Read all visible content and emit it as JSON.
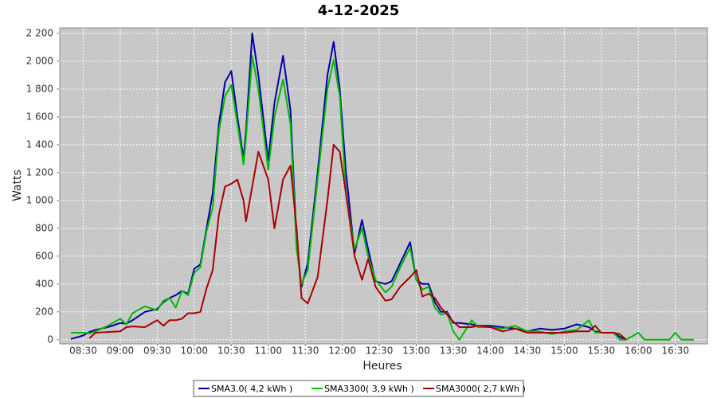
{
  "chart_data": {
    "type": "line",
    "title": "4-12-2025",
    "x_label": "Heures",
    "y_label": "Watts",
    "x": [
      "08:20",
      "08:30",
      "08:35",
      "08:40",
      "08:50",
      "09:00",
      "09:05",
      "09:10",
      "09:20",
      "09:30",
      "09:35",
      "09:40",
      "09:45",
      "09:50",
      "09:55",
      "10:00",
      "10:05",
      "10:10",
      "10:15",
      "10:20",
      "10:25",
      "10:30",
      "10:35",
      "10:40",
      "10:42",
      "10:47",
      "10:52",
      "11:00",
      "11:05",
      "11:12",
      "11:18",
      "11:23",
      "11:27",
      "11:32",
      "11:40",
      "11:48",
      "11:53",
      "11:58",
      "12:03",
      "12:10",
      "12:16",
      "12:21",
      "12:27",
      "12:35",
      "12:40",
      "12:47",
      "12:55",
      "13:00",
      "13:05",
      "13:10",
      "13:15",
      "13:20",
      "13:25",
      "13:30",
      "13:35",
      "13:45",
      "13:50",
      "14:00",
      "14:10",
      "14:20",
      "14:30",
      "14:40",
      "14:50",
      "15:00",
      "15:10",
      "15:20",
      "15:25",
      "15:30",
      "15:40",
      "15:45",
      "15:50",
      "16:00",
      "16:05",
      "16:25",
      "16:30",
      "16:35",
      "16:45"
    ],
    "series": [
      {
        "name": "SMA3.0( 4,2 kWh )",
        "color": "#0000aa",
        "values": [
          5,
          30,
          55,
          70,
          90,
          120,
          115,
          140,
          200,
          220,
          270,
          300,
          320,
          350,
          330,
          510,
          540,
          800,
          1050,
          1550,
          1850,
          1930,
          1600,
          1300,
          1500,
          2200,
          1900,
          1290,
          1700,
          2040,
          1650,
          700,
          380,
          550,
          1200,
          1900,
          2140,
          1800,
          1200,
          620,
          860,
          650,
          420,
          400,
          420,
          550,
          700,
          430,
          400,
          400,
          270,
          200,
          200,
          120,
          120,
          110,
          100,
          100,
          90,
          80,
          60,
          80,
          70,
          80,
          110,
          90,
          60,
          50,
          50,
          20,
          0,
          null,
          null,
          null,
          null,
          null,
          null
        ]
      },
      {
        "name": "SMA3300( 3,9 kWh )",
        "color": "#00bb00",
        "values": [
          50,
          50,
          45,
          60,
          100,
          150,
          110,
          190,
          240,
          210,
          280,
          300,
          230,
          350,
          320,
          480,
          520,
          780,
          950,
          1500,
          1750,
          1830,
          1550,
          1260,
          1450,
          2040,
          1800,
          1220,
          1600,
          1870,
          1550,
          650,
          400,
          500,
          1150,
          1800,
          2010,
          1750,
          1050,
          650,
          800,
          600,
          430,
          340,
          380,
          520,
          660,
          430,
          360,
          380,
          230,
          180,
          190,
          60,
          0,
          140,
          90,
          90,
          80,
          100,
          60,
          60,
          40,
          60,
          70,
          140,
          50,
          50,
          50,
          0,
          0,
          50,
          0,
          0,
          50,
          0,
          0
        ]
      },
      {
        "name": "SMA3000( 2,7 kWh )",
        "color": "#aa0000",
        "values": [
          null,
          null,
          10,
          50,
          55,
          60,
          90,
          95,
          90,
          140,
          100,
          140,
          140,
          150,
          190,
          190,
          200,
          370,
          500,
          900,
          1100,
          1120,
          1150,
          1000,
          850,
          1100,
          1350,
          1150,
          800,
          1150,
          1250,
          800,
          300,
          260,
          450,
          1000,
          1400,
          1350,
          1050,
          600,
          430,
          580,
          380,
          280,
          290,
          380,
          450,
          500,
          310,
          330,
          300,
          230,
          180,
          130,
          90,
          90,
          100,
          90,
          60,
          80,
          50,
          50,
          50,
          50,
          60,
          60,
          100,
          50,
          50,
          40,
          0,
          null,
          null,
          null,
          null,
          null,
          null
        ]
      }
    ],
    "xlim": [
      "08:11",
      "16:56"
    ],
    "xticks": [
      "08:30",
      "09:00",
      "09:30",
      "10:00",
      "10:30",
      "11:00",
      "11:30",
      "12:00",
      "12:30",
      "13:00",
      "13:30",
      "14:00",
      "14:30",
      "15:00",
      "15:30",
      "16:00",
      "16:30"
    ],
    "ylim": [
      -30,
      2240
    ],
    "yticks": [
      0,
      200,
      400,
      600,
      800,
      {
        "value": 1000,
        "label": "1 000"
      },
      {
        "value": 1200,
        "label": "1 200"
      },
      {
        "value": 1400,
        "label": "1 400"
      },
      {
        "value": 1600,
        "label": "1 600"
      },
      {
        "value": 1800,
        "label": "1 800"
      },
      {
        "value": 2000,
        "label": "2 000"
      },
      {
        "value": 2200,
        "label": "2 200"
      }
    ],
    "grid": true,
    "legend": "bottom"
  }
}
